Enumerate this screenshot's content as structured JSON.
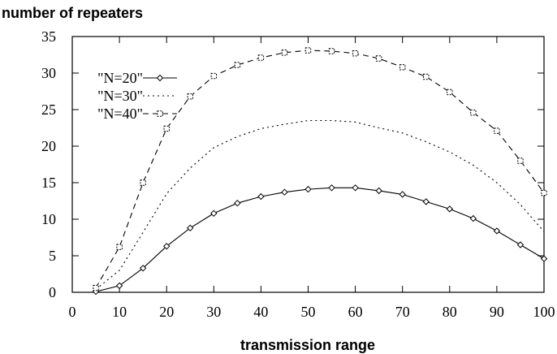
{
  "chart_data": {
    "type": "line",
    "title": "number of repeaters",
    "xlabel": "transmission range",
    "ylabel": "",
    "xlim": [
      0,
      100
    ],
    "ylim": [
      0,
      35
    ],
    "x_ticks": [
      0,
      10,
      20,
      30,
      40,
      50,
      60,
      70,
      80,
      90,
      100
    ],
    "y_ticks": [
      0,
      5,
      10,
      15,
      20,
      25,
      30,
      35
    ],
    "grid": false,
    "legend_position": "top-left",
    "x": [
      5,
      10,
      15,
      20,
      25,
      30,
      35,
      40,
      45,
      50,
      55,
      60,
      65,
      70,
      75,
      80,
      85,
      90,
      95,
      100
    ],
    "series": [
      {
        "name": "\"N=20\"",
        "line_style": "solid",
        "marker": "diamond",
        "color": "#000000",
        "values": [
          0.1,
          0.9,
          3.3,
          6.3,
          8.8,
          10.8,
          12.2,
          13.1,
          13.7,
          14.1,
          14.3,
          14.3,
          13.9,
          13.4,
          12.4,
          11.4,
          10.1,
          8.4,
          6.5,
          4.6
        ]
      },
      {
        "name": "\"N=30\"",
        "line_style": "dotted",
        "marker": "none",
        "color": "#000000",
        "values": [
          0.4,
          3.0,
          8.2,
          13.5,
          17.0,
          19.8,
          21.3,
          22.4,
          23.0,
          23.5,
          23.5,
          23.3,
          22.5,
          21.8,
          20.6,
          19.2,
          17.4,
          15.0,
          12.0,
          8.3
        ]
      },
      {
        "name": "\"N=40\"",
        "line_style": "dashed",
        "marker": "square",
        "color": "#000000",
        "values": [
          0.6,
          6.2,
          15.0,
          22.4,
          26.8,
          29.6,
          31.1,
          32.1,
          32.8,
          33.1,
          33.0,
          32.7,
          32.0,
          30.8,
          29.5,
          27.4,
          24.6,
          22.1,
          18.0,
          13.6
        ]
      }
    ]
  }
}
